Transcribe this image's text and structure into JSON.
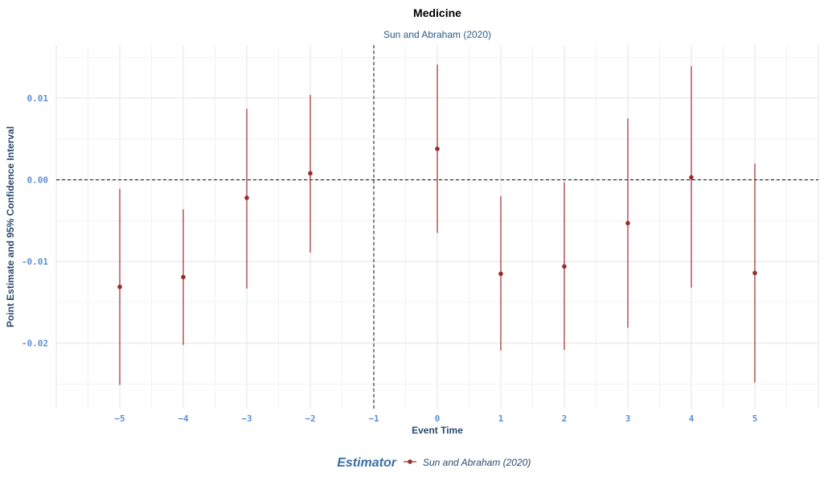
{
  "chart_data": {
    "type": "scatter",
    "title": "Medicine",
    "subtitle": "Sun and Abraham (2020)",
    "xlabel": "Event Time",
    "ylabel": "Point Estimate and 95% Confidence Interval",
    "xlim": [
      -6,
      6
    ],
    "ylim": [
      -0.028,
      0.0165
    ],
    "x_ticks": [
      -5,
      -4,
      -3,
      -2,
      -1,
      0,
      1,
      2,
      3,
      4,
      5
    ],
    "y_ticks": [
      0.01,
      0.0,
      -0.01,
      -0.02
    ],
    "y_tick_labels": [
      "0.01",
      "0.00",
      "-0.01",
      "-0.02"
    ],
    "reference_lines": {
      "x": -1,
      "y": 0
    },
    "grid": true,
    "legend": {
      "title": "Estimator",
      "position": "bottom"
    },
    "series": [
      {
        "name": "Sun and Abraham (2020)",
        "color": "#9e2a2b",
        "points": [
          {
            "x": -5,
            "y": -0.0131,
            "lo": -0.0251,
            "hi": -0.0011
          },
          {
            "x": -4,
            "y": -0.0119,
            "lo": -0.0202,
            "hi": -0.0036
          },
          {
            "x": -3,
            "y": -0.0022,
            "lo": -0.0133,
            "hi": 0.0087
          },
          {
            "x": -2,
            "y": 0.0008,
            "lo": -0.0089,
            "hi": 0.0104
          },
          {
            "x": 0,
            "y": 0.0038,
            "lo": -0.0065,
            "hi": 0.0141
          },
          {
            "x": 1,
            "y": -0.0115,
            "lo": -0.0209,
            "hi": -0.002
          },
          {
            "x": 2,
            "y": -0.0106,
            "lo": -0.0208,
            "hi": -0.0003
          },
          {
            "x": 3,
            "y": -0.0053,
            "lo": -0.0181,
            "hi": 0.0075
          },
          {
            "x": 4,
            "y": 0.0003,
            "lo": -0.0132,
            "hi": 0.0139
          },
          {
            "x": 5,
            "y": -0.0114,
            "lo": -0.0248,
            "hi": 0.002
          }
        ]
      }
    ]
  }
}
